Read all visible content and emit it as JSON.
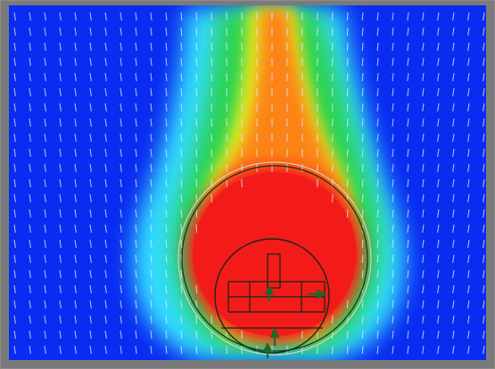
{
  "image": {
    "kind": "flow-velocity-contour",
    "colors": {
      "frame": "#7a7a7a",
      "background": "#0a2cf0",
      "cyan": "#35e6ff",
      "green": "#29d24a",
      "yellow": "#f3f21d",
      "orange": "#ff7a12",
      "red": "#f31b1b",
      "vectors": "#dfe8ff",
      "overlay_lines": "#0b2a16",
      "overlay_arrows": "#1a6a2b"
    }
  }
}
